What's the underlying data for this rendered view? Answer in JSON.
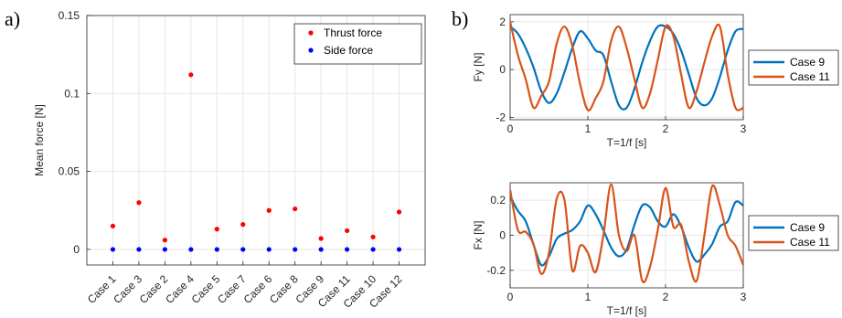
{
  "panel_labels": {
    "a": "a)",
    "b": "b)"
  },
  "chart_data": [
    {
      "id": "panel-a",
      "type": "scatter",
      "title": "",
      "xlabel": "",
      "ylabel": "Mean force [N]",
      "categories": [
        "Case 1",
        "Case 3",
        "Case 2",
        "Case 4",
        "Case 5",
        "Case 7",
        "Case 6",
        "Case 8",
        "Case 9",
        "Case 11",
        "Case 10",
        "Case 12"
      ],
      "ylim": [
        -0.01,
        0.15
      ],
      "yticks": [
        0,
        0.05,
        0.1,
        0.15
      ],
      "ytick_labels": [
        "0",
        "0.05",
        "0.1",
        "0.15"
      ],
      "grid": true,
      "legend_position": "top-right",
      "series": [
        {
          "name": "Thrust force",
          "color": "#ff0000",
          "values": [
            0.015,
            0.03,
            0.006,
            0.112,
            0.013,
            0.016,
            0.025,
            0.026,
            0.007,
            0.012,
            0.008,
            0.024
          ]
        },
        {
          "name": "Side force",
          "color": "#0000ff",
          "values": [
            0,
            0,
            0,
            0,
            0,
            0,
            0,
            0,
            0,
            0,
            0,
            0
          ]
        }
      ]
    },
    {
      "id": "panel-b-top",
      "type": "line",
      "title": "",
      "xlabel": "T=1/f [s]",
      "ylabel": "Fy [N]",
      "xlim": [
        0,
        3
      ],
      "ylim": [
        -2.1,
        2.3
      ],
      "xticks": [
        0,
        1,
        2,
        3
      ],
      "yticks": [
        -2,
        0,
        2
      ],
      "grid": true,
      "legend_position": "right",
      "series": [
        {
          "name": "Case 9",
          "color": "#0072bd",
          "x": [
            0,
            0.1,
            0.2,
            0.3,
            0.4,
            0.5,
            0.6,
            0.7,
            0.8,
            0.9,
            1.0,
            1.1,
            1.2,
            1.3,
            1.4,
            1.5,
            1.6,
            1.7,
            1.8,
            1.9,
            2.0,
            2.1,
            2.2,
            2.3,
            2.4,
            2.5,
            2.6,
            2.7,
            2.8,
            2.9,
            3.0
          ],
          "values": [
            1.8,
            1.5,
            0.9,
            0.1,
            -0.9,
            -1.4,
            -1.0,
            -0.1,
            0.9,
            1.6,
            1.3,
            0.8,
            0.6,
            -0.5,
            -1.5,
            -1.6,
            -0.8,
            0.3,
            1.2,
            1.8,
            1.8,
            1.5,
            0.8,
            -0.2,
            -1.2,
            -1.5,
            -1.2,
            -0.3,
            0.8,
            1.6,
            1.7
          ]
        },
        {
          "name": "Case 11",
          "color": "#d95319",
          "x": [
            0,
            0.1,
            0.2,
            0.3,
            0.4,
            0.5,
            0.6,
            0.7,
            0.8,
            0.9,
            1.0,
            1.1,
            1.2,
            1.3,
            1.4,
            1.5,
            1.6,
            1.7,
            1.8,
            1.9,
            2.0,
            2.1,
            2.2,
            2.3,
            2.4,
            2.5,
            2.6,
            2.7,
            2.8,
            2.9,
            3.0
          ],
          "values": [
            2.0,
            0.6,
            -0.4,
            -1.6,
            -1.1,
            -0.5,
            1.1,
            1.8,
            1.0,
            -0.6,
            -1.7,
            -1.2,
            -0.5,
            1.2,
            1.8,
            0.9,
            -0.4,
            -1.6,
            -1.0,
            0.4,
            1.8,
            1.4,
            -0.2,
            -1.6,
            -0.9,
            0.3,
            1.4,
            1.8,
            -0.2,
            -1.6,
            -1.6
          ]
        }
      ]
    },
    {
      "id": "panel-b-bottom",
      "type": "line",
      "title": "",
      "xlabel": "T=1/f [s]",
      "ylabel": "Fx [N]",
      "xlim": [
        0,
        3
      ],
      "ylim": [
        -0.3,
        0.3
      ],
      "xticks": [
        0,
        1,
        2,
        3
      ],
      "yticks": [
        -0.2,
        0,
        0.2
      ],
      "ytick_labels": [
        "-0.2",
        "0",
        "0.2"
      ],
      "grid": true,
      "legend_position": "right",
      "series": [
        {
          "name": "Case 9",
          "color": "#0072bd",
          "x": [
            0,
            0.1,
            0.2,
            0.3,
            0.4,
            0.5,
            0.6,
            0.7,
            0.8,
            0.9,
            1.0,
            1.1,
            1.2,
            1.3,
            1.4,
            1.5,
            1.6,
            1.7,
            1.8,
            1.9,
            2.0,
            2.1,
            2.2,
            2.3,
            2.4,
            2.5,
            2.6,
            2.7,
            2.8,
            2.9,
            3.0
          ],
          "values": [
            0.22,
            0.14,
            0.08,
            -0.05,
            -0.17,
            -0.12,
            -0.02,
            0.01,
            0.03,
            0.08,
            0.17,
            0.12,
            0.03,
            -0.07,
            -0.12,
            -0.08,
            0.06,
            0.17,
            0.16,
            0.08,
            0.05,
            0.12,
            0.05,
            -0.07,
            -0.15,
            -0.11,
            -0.05,
            0.05,
            0.08,
            0.19,
            0.17
          ]
        },
        {
          "name": "Case 11",
          "color": "#d95319",
          "x": [
            0,
            0.1,
            0.2,
            0.3,
            0.4,
            0.5,
            0.6,
            0.7,
            0.8,
            0.9,
            1.0,
            1.1,
            1.2,
            1.3,
            1.4,
            1.5,
            1.6,
            1.7,
            1.8,
            1.9,
            2.0,
            2.1,
            2.2,
            2.3,
            2.4,
            2.5,
            2.6,
            2.7,
            2.8,
            2.9,
            3.0
          ],
          "values": [
            0.26,
            0.03,
            0.02,
            -0.05,
            -0.22,
            -0.1,
            0.21,
            0.2,
            -0.2,
            -0.06,
            -0.1,
            -0.21,
            0.0,
            0.29,
            0.0,
            -0.09,
            0.0,
            -0.26,
            -0.18,
            0.03,
            0.27,
            0.05,
            0.06,
            -0.15,
            -0.26,
            0.0,
            0.28,
            0.17,
            0.0,
            -0.06,
            -0.17
          ]
        }
      ]
    }
  ]
}
